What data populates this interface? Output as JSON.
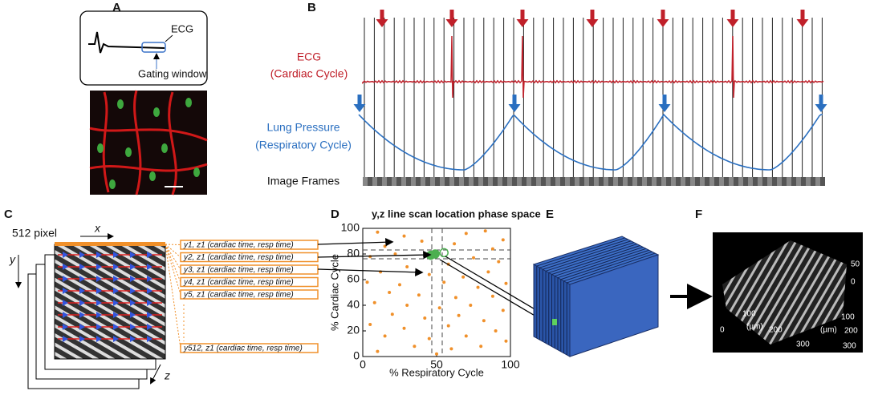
{
  "panels": [
    "A",
    "B",
    "C",
    "D",
    "E",
    "F"
  ],
  "ecg_inset": {
    "label": "ECG",
    "window": "Gating window"
  },
  "trace": {
    "ecg_label": [
      "ECG",
      "(Cardiac Cycle)"
    ],
    "lung_label": [
      "Lung Pressure",
      "(Respiratory Cycle)"
    ],
    "frames_label": "Image Frames"
  },
  "stack": {
    "pixel": "512 pixel",
    "x": "x",
    "y": "y",
    "z": "z",
    "rows": [
      "y1, z1 (cardiac time, resp time)",
      "y2, z1 (cardiac time, resp time)",
      "y3, z1 (cardiac time, resp time)",
      "y4, z1 (cardiac time, resp time)",
      "y5, z1 (cardiac time, resp time)"
    ],
    "last_row": "y512, z1 (cardiac time, resp time)"
  },
  "phase": {
    "title": "y,z line scan location phase space",
    "xlabel": "% Respiratory Cycle",
    "ylabel": "% Cardiac Cycle",
    "xlim": [
      0,
      100
    ],
    "ylim": [
      0,
      100
    ],
    "xticks": [
      0,
      50,
      100
    ],
    "yticks": [
      0,
      20,
      40,
      60,
      80,
      100
    ],
    "color": "#f0902a",
    "x": [
      10,
      28,
      70,
      83,
      95,
      15,
      40,
      62,
      88,
      5,
      22,
      75,
      58,
      92,
      30,
      12,
      45,
      68,
      85,
      3,
      25,
      55,
      78,
      97,
      18,
      38,
      63,
      88,
      8,
      30,
      52,
      73,
      95,
      20,
      42,
      65,
      82,
      5,
      28,
      58,
      90,
      15,
      45,
      70,
      97,
      35,
      60,
      80,
      10,
      50
    ],
    "y": [
      97,
      94,
      96,
      98,
      91,
      86,
      90,
      88,
      84,
      78,
      80,
      77,
      72,
      74,
      70,
      66,
      64,
      62,
      66,
      58,
      56,
      58,
      54,
      57,
      50,
      48,
      46,
      47,
      42,
      40,
      38,
      40,
      36,
      33,
      30,
      32,
      28,
      25,
      22,
      24,
      20,
      16,
      14,
      16,
      12,
      8,
      6,
      8,
      4,
      2
    ],
    "highlight": {
      "color": "#4caf50",
      "x": [
        46,
        49,
        55
      ],
      "y": [
        79,
        80,
        81
      ]
    }
  },
  "render": {
    "left_ticks": [
      "0",
      "100",
      "(µm)",
      "200",
      "300"
    ],
    "right_ticks": [
      "50",
      "0",
      "100",
      "200",
      "300",
      "(µm)"
    ]
  }
}
